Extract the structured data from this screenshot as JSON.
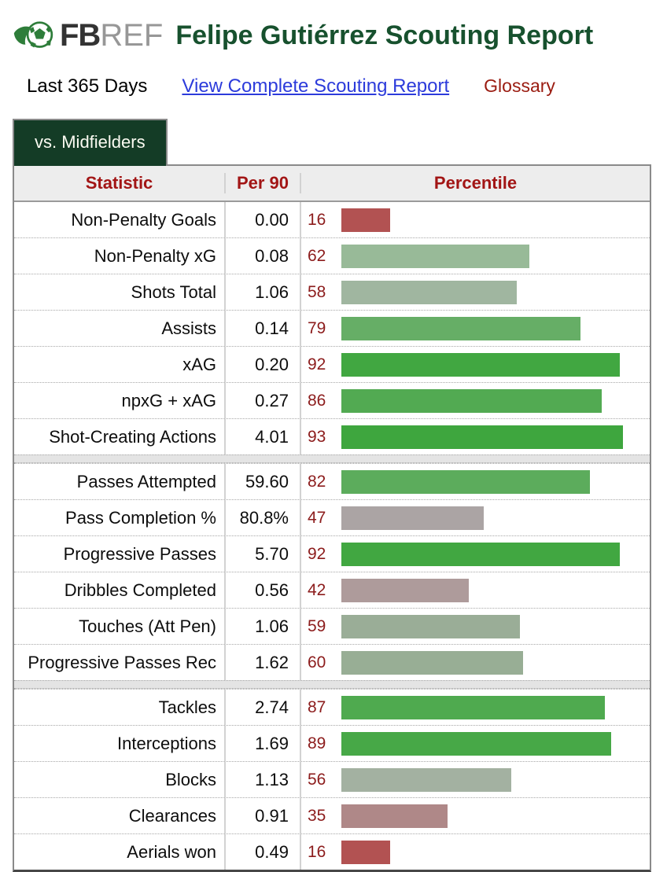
{
  "header": {
    "logo_fb": "FB",
    "logo_ref": "REF",
    "title": "Felipe Gutiérrez Scouting Report"
  },
  "subheader": {
    "period": "Last 365 Days",
    "report_link": "View Complete Scouting Report",
    "glossary": "Glossary"
  },
  "tab": {
    "label": "vs. Midfielders"
  },
  "colors": {
    "title_green": "#17512e",
    "tab_green": "#143c26",
    "header_red": "#a21515",
    "pct_num_red": "#8c1c1c",
    "link_blue": "#2c3bdb",
    "glossary_red": "#9a1b10",
    "logo_ball_green": "#2e7d3a"
  },
  "table": {
    "columns": [
      "Statistic",
      "Per 90",
      "Percentile"
    ],
    "sections": [
      {
        "rows": [
          {
            "label": "Non-Penalty Goals",
            "per90": "0.00",
            "percentile": 16,
            "color": "#b25252"
          },
          {
            "label": "Non-Penalty xG",
            "per90": "0.08",
            "percentile": 62,
            "color": "#98ba98"
          },
          {
            "label": "Shots Total",
            "per90": "1.06",
            "percentile": 58,
            "color": "#a0b6a0"
          },
          {
            "label": "Assists",
            "per90": "0.14",
            "percentile": 79,
            "color": "#66ae66"
          },
          {
            "label": "xAG",
            "per90": "0.20",
            "percentile": 92,
            "color": "#41a741"
          },
          {
            "label": "npxG + xAG",
            "per90": "0.27",
            "percentile": 86,
            "color": "#52aa52"
          },
          {
            "label": "Shot-Creating Actions",
            "per90": "4.01",
            "percentile": 93,
            "color": "#3ea63e"
          }
        ]
      },
      {
        "rows": [
          {
            "label": "Passes Attempted",
            "per90": "59.60",
            "percentile": 82,
            "color": "#5cac5c"
          },
          {
            "label": "Pass Completion %",
            "per90": "80.8%",
            "percentile": 47,
            "color": "#aba4a4"
          },
          {
            "label": "Progressive Passes",
            "per90": "5.70",
            "percentile": 92,
            "color": "#41a741"
          },
          {
            "label": "Dribbles Completed",
            "per90": "0.56",
            "percentile": 42,
            "color": "#ae9b9b"
          },
          {
            "label": "Touches (Att Pen)",
            "per90": "1.06",
            "percentile": 59,
            "color": "#9aad97"
          },
          {
            "label": "Progressive Passes Rec",
            "per90": "1.62",
            "percentile": 60,
            "color": "#98ae95"
          }
        ]
      },
      {
        "rows": [
          {
            "label": "Tackles",
            "per90": "2.74",
            "percentile": 87,
            "color": "#4faa4f"
          },
          {
            "label": "Interceptions",
            "per90": "1.69",
            "percentile": 89,
            "color": "#47a847"
          },
          {
            "label": "Blocks",
            "per90": "1.13",
            "percentile": 56,
            "color": "#a3b1a1"
          },
          {
            "label": "Clearances",
            "per90": "0.91",
            "percentile": 35,
            "color": "#af8888"
          },
          {
            "label": "Aerials won",
            "per90": "0.49",
            "percentile": 16,
            "color": "#b25252"
          }
        ]
      }
    ]
  }
}
